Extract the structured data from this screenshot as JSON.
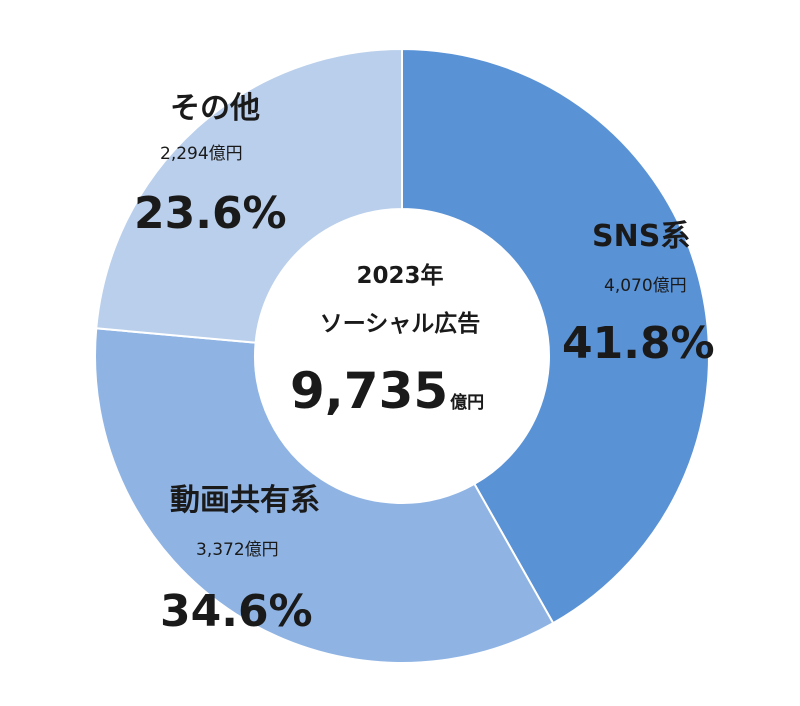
{
  "chart_data": {
    "type": "pie",
    "style": "donut",
    "center": {
      "year": "2023年",
      "label": "ソーシャル広告",
      "total": "9,735",
      "unit": "億円"
    },
    "slices": [
      {
        "name": "SNS系",
        "amount": "4,070億円",
        "value": 4070,
        "percent": "41.8%",
        "color": "#5a92d6"
      },
      {
        "name": "動画共有系",
        "amount": "3,372億円",
        "value": 3372,
        "percent": "34.6%",
        "color": "#8fb4e4"
      },
      {
        "name": "その他",
        "amount": "2,294億円",
        "value": 2294,
        "percent": "23.6%",
        "color": "#b9cfeb"
      }
    ]
  }
}
